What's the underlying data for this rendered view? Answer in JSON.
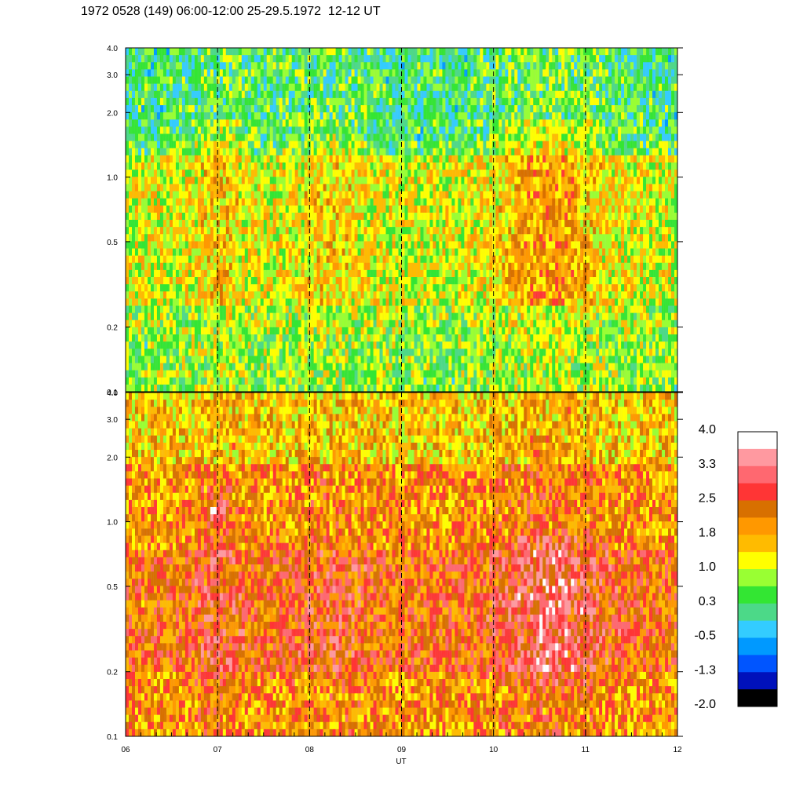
{
  "title": "1972 0528 (149) 06:00-12:00 25-29.5.1972  12-12 UT",
  "chart_data": [
    {
      "type": "heatmap",
      "panel": "top",
      "x_range": [
        "06",
        "12"
      ],
      "y_scale": "log",
      "ylim": [
        0.1,
        4.0
      ],
      "y_ticks": [
        "0.1",
        "0.2",
        "0.5",
        "1.0",
        "2.0",
        "3.0",
        "4.0"
      ],
      "dominant_levels": [
        0.3,
        0.7,
        1.0,
        1.3
      ],
      "dashed_hour_lines": [
        "07",
        "08",
        "09",
        "10",
        "11"
      ],
      "pattern": "noisy green/yellow-green field, cyan-blue speckle above 1.0, yellow and orange patches around 0.5-1.0 near 07 and 10-11"
    },
    {
      "type": "heatmap",
      "panel": "bottom",
      "x_range": [
        "06",
        "12"
      ],
      "y_scale": "log",
      "ylim": [
        0.1,
        4.0
      ],
      "y_ticks": [
        "0.1",
        "0.2",
        "0.5",
        "1.0",
        "2.0",
        "3.0",
        "4.0"
      ],
      "dominant_levels": [
        1.4,
        1.8,
        2.2,
        2.5
      ],
      "dashed_hour_lines": [
        "07",
        "08",
        "09",
        "10",
        "11"
      ],
      "pattern": "noisy orange field, yellow speckle above 2.0, dark orange to red regions around 0.3-0.6 near 10-11"
    }
  ],
  "x_axis": {
    "label": "UT",
    "ticks": [
      "06",
      "07",
      "08",
      "09",
      "10",
      "11",
      "12"
    ]
  },
  "colorbar": {
    "labels": [
      "4.0",
      "3.3",
      "2.5",
      "1.8",
      "1.0",
      "0.3",
      "-0.5",
      "-1.3",
      "-2.0"
    ],
    "colors": [
      "#ffffff",
      "#ff99a0",
      "#ff6870",
      "#ff3535",
      "#d87000",
      "#ff9800",
      "#ffbb00",
      "#ffff00",
      "#99ff33",
      "#33e633",
      "#4cd988",
      "#33ccff",
      "#0099ff",
      "#0055ff",
      "#0011bb",
      "#000000"
    ]
  }
}
